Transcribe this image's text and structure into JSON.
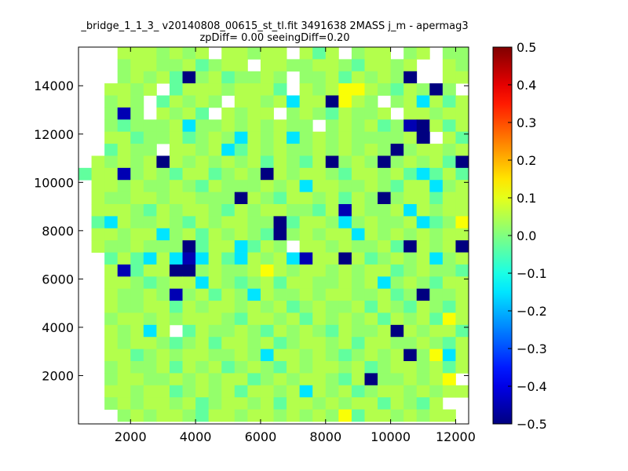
{
  "chart_data": {
    "type": "heatmap",
    "title": "_bridge_1_1_3_ v20140808_00615_st_tl.fit 3491638 2MASS j_m - apermag3",
    "subtitle": "zpDiff= 0.00 seeingDiff=0.20",
    "xlim": [
      400,
      12400
    ],
    "ylim": [
      0,
      15600
    ],
    "x_ticks": [
      2000,
      4000,
      6000,
      8000,
      10000,
      12000
    ],
    "x_tick_labels": [
      "2000",
      "4000",
      "6000",
      "8000",
      "10000",
      "12000"
    ],
    "y_ticks": [
      2000,
      4000,
      6000,
      8000,
      10000,
      12000,
      14000
    ],
    "y_tick_labels": [
      "2000",
      "4000",
      "6000",
      "8000",
      "10000",
      "12000",
      "14000"
    ],
    "grid": false,
    "colormap": "jet",
    "colorbar": {
      "range": [
        -0.5,
        0.5
      ],
      "ticks": [
        0.5,
        0.4,
        0.3,
        0.2,
        0.1,
        0.0,
        -0.1,
        -0.2,
        -0.3,
        -0.4,
        -0.5
      ],
      "tick_labels": [
        "0.5",
        "0.4",
        "0.3",
        "0.2",
        "0.1",
        "0.0",
        "−0.1",
        "−0.2",
        "−0.3",
        "−0.4",
        "−0.5"
      ]
    },
    "grid_cells": {
      "columns": 31,
      "rows": 31,
      "x_start": 400,
      "y_start": 0,
      "cell_width": 400,
      "cell_height": 500,
      "values": [
        "   ...,.,. ..,.. .:. ,.. ,. ,, ",
        "   ,..,,.:,.. ..,,..,:..,.  ., ",
        "   ,.,.: ,.:,,., ,,.:.,.,.  .. ",
        "  ..,. :...,...: .,..+.,:.,.,  ",
        "  ,., :.,., ..,.=..:.., ,.=.:..",
        "  ,., .,.: .,.. ,.,:.,,. ..,.. ",
        "  ,:,,,.=,,.,.,.,, ,.,.:, ..:. ",
        "  ..:,,.:,.,=.,.=,.,.,,,,.. .:.",
        "  :.,, ..,.=:.,.,,.,.,.,,,..,. ",
        " .,.,.:.,.,.,.:.,:.:,.,,,.,.:  ",
        ":..,,.,:..:,.,..,..,:..,.:=:.: ",
        " ..,.,,.,:.,,,.,.=..,,.,:..=,. ",
        " .,,..,..,,,..,:..,.:.,.,..:.. ",
        " ...,:.,..,:.,..,,:.,.,,.=.,.. ",
        " :=.,,.,:.,..,,.:..,=,.,,.=:,. ",
        " ..,..=,.:.,.,:.,.,..=.,.,.,.. ",
        " .,,.,,,.:..=:., ..,.,,.:..,.. ",
        "  :.:=.=#=.:=.,.=,..=.:,.,.=,.,",
        "  ..:..:.,.,,.:.,..,.,..:,.,,: ",
        "  ..,:,..=.,:,.:..,,.,.=,.,:.. ",
        "  .,,.,.,.:.,=.,,.,..,,.:,.,,. ",
        "  .,,..:.,..,.,.:,.,,.:.,:.,:. ",
        "  ,..,.,...,:..,.:.,.,.:.,.:+. ",
        "  .,.=. :.,,.,:.,.,:.,,.:.,..: ",
        "  .,..,:,.:..,.:,..,.:..,,.,:. ",
        "  ..:,.,..,,.,=..,.,:,.,..,.=. ",
        "  ,.,,.:.,.:,.,:.,..,.:,..,.:. ",
        "  ,..,,.,.,..:,.,..,:..,,.,..  ",
        "  ..,..:,.,.:..,.=.,.:,..,.,.. ",
        "  ,.,..,.:,..,.:..,.,..:.,:.   ",
        "   ,.,..,:..,..,.,.,.:..,.,..  "
      ],
      "value_codes": {
        ".": 0.05,
        ",": 0.02,
        ":": -0.03,
        "=": -0.15,
        "#": -0.45,
        "+": 0.12
      },
      "strong_cells": [
        [
          16,
          8,
          -0.5
        ],
        [
          5,
          3,
          -0.45
        ],
        [
          2,
          8,
          -0.5
        ],
        [
          12,
          12,
          -0.5
        ],
        [
          10,
          3,
          -0.45
        ],
        [
          17,
          17,
          -0.45
        ],
        [
          10,
          14,
          -0.5
        ],
        [
          4,
          19,
          -0.5
        ],
        [
          9,
          19,
          -0.5
        ],
        [
          16,
          29,
          -0.5
        ],
        [
          13,
          20,
          -0.45
        ],
        [
          14,
          15,
          -0.5
        ],
        [
          16,
          25,
          -0.5
        ],
        [
          8,
          24,
          -0.5
        ],
        [
          7,
          26,
          -0.5
        ],
        [
          6,
          25,
          -0.45
        ],
        [
          6,
          26,
          -0.5
        ],
        [
          18,
          3,
          -0.45
        ],
        [
          18,
          7,
          -0.5
        ],
        [
          18,
          8,
          -0.5
        ],
        [
          17,
          20,
          -0.5
        ],
        [
          20,
          7,
          -0.45
        ],
        [
          27,
          22,
          -0.5
        ],
        [
          9,
          23,
          -0.5
        ],
        [
          23,
          24,
          -0.5
        ],
        [
          15,
          15,
          -0.5
        ],
        [
          12,
          23,
          -0.5
        ],
        [
          3,
          27,
          -0.5
        ],
        [
          25,
          25,
          -0.5
        ],
        [
          20,
          26,
          -0.5
        ],
        [
          9,
          6,
          -0.5
        ],
        [
          9,
          29,
          -0.5
        ],
        [
          2,
          25,
          -0.5
        ],
        [
          3,
          20,
          0.12
        ],
        [
          4,
          20,
          0.12
        ],
        [
          14,
          29,
          0.12
        ],
        [
          25,
          27,
          0.12
        ],
        [
          30,
          20,
          0.12
        ],
        [
          27,
          28,
          0.12
        ],
        [
          18,
          14,
          0.12
        ]
      ]
    }
  }
}
